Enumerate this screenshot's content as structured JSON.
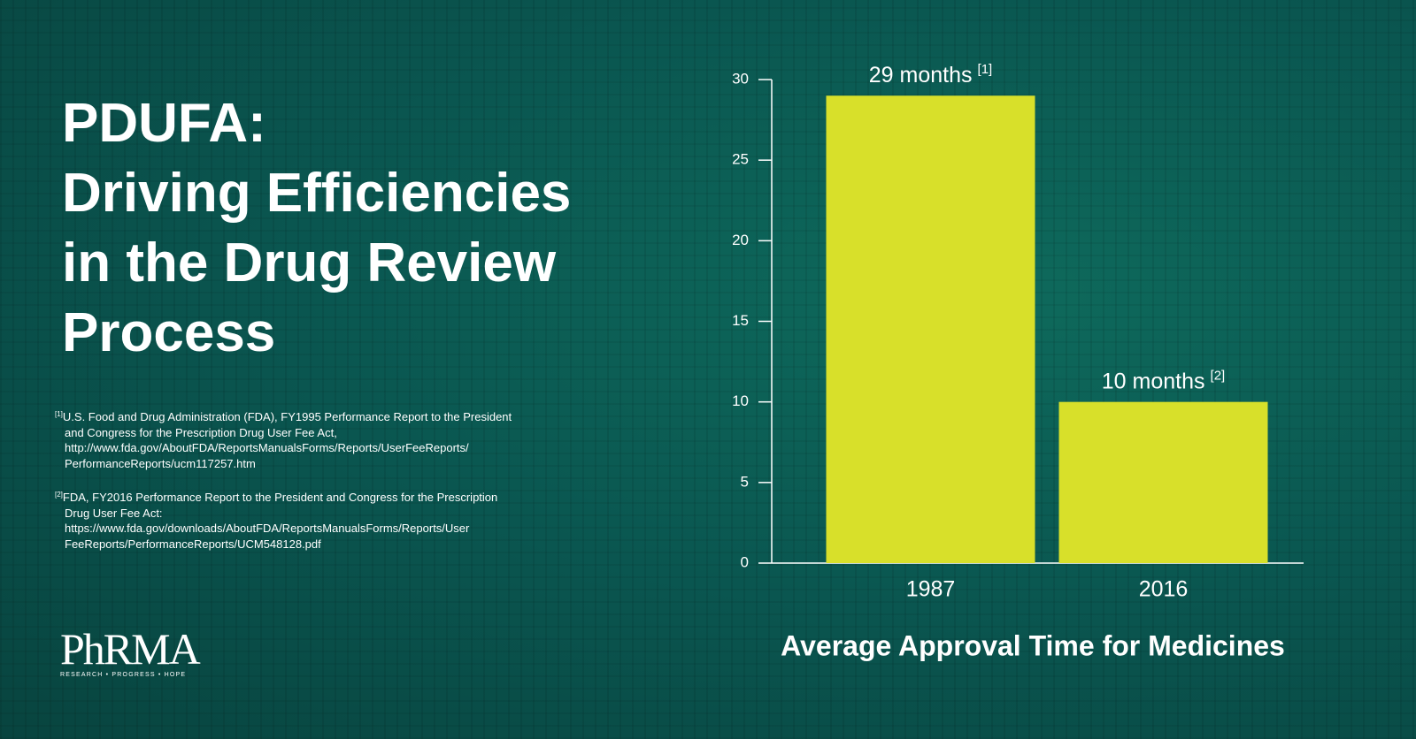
{
  "title_lines": [
    "PDUFA:",
    "Driving Efficiencies",
    "in the Drug Review",
    "Process"
  ],
  "footnotes": [
    {
      "marker": "[1]",
      "text": "U.S. Food and Drug Administration (FDA), FY1995 Performance Report to the President and Congress for the Prescription Drug User Fee Act, http://www.fda.gov/AboutFDA/ReportsManualsForms/Reports/UserFeeReports/ PerformanceReports/ucm117257.htm"
    },
    {
      "marker": "[2]",
      "text": "FDA, FY2016 Performance Report to the President and Congress for the Prescription Drug User Fee Act: https://www.fda.gov/downloads/AboutFDA/ReportsManualsForms/Reports/User FeeReports/PerformanceReports/UCM548128.pdf"
    }
  ],
  "logo": {
    "name": "PhRMA",
    "tagline": "RESEARCH • PROGRESS • HOPE"
  },
  "chart_data": {
    "type": "bar",
    "x_label": "Average Approval Time for Medicines",
    "categories": [
      "1987",
      "2016"
    ],
    "values": [
      29,
      10
    ],
    "value_labels": [
      "29 months",
      "10 months"
    ],
    "value_label_notes": [
      "[1]",
      "[2]"
    ],
    "color": "#d8e02a",
    "ylim": [
      0,
      30
    ],
    "yticks": [
      0,
      5,
      10,
      15,
      20,
      25,
      30
    ],
    "grid": false
  }
}
